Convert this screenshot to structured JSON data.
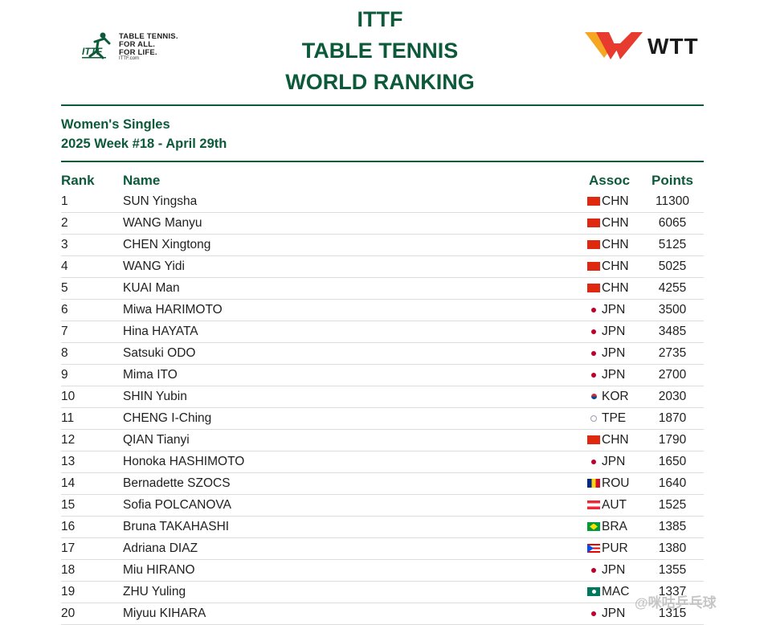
{
  "header": {
    "logo_tagline": [
      "TABLE TENNIS.",
      "FOR ALL.",
      "FOR LIFE."
    ],
    "logo_url": "ITTF.com",
    "title_lines": [
      "ITTF",
      "TABLE TENNIS",
      "WORLD RANKING"
    ],
    "wtt_label": "WTT"
  },
  "subtitle": {
    "category": "Women's Singles",
    "week": "2025 Week #18 - April 29th"
  },
  "table": {
    "columns": {
      "rank": "Rank",
      "name": "Name",
      "assoc": "Assoc",
      "points": "Points"
    },
    "rows": [
      {
        "rank": "1",
        "name": "SUN Yingsha",
        "flag": "chn",
        "assoc": "CHN",
        "points": "11300"
      },
      {
        "rank": "2",
        "name": "WANG Manyu",
        "flag": "chn",
        "assoc": "CHN",
        "points": "6065"
      },
      {
        "rank": "3",
        "name": "CHEN Xingtong",
        "flag": "chn",
        "assoc": "CHN",
        "points": "5125"
      },
      {
        "rank": "4",
        "name": "WANG Yidi",
        "flag": "chn",
        "assoc": "CHN",
        "points": "5025"
      },
      {
        "rank": "5",
        "name": "KUAI Man",
        "flag": "chn",
        "assoc": "CHN",
        "points": "4255"
      },
      {
        "rank": "6",
        "name": "Miwa HARIMOTO",
        "flag": "jpn",
        "assoc": "JPN",
        "points": "3500"
      },
      {
        "rank": "7",
        "name": "Hina HAYATA",
        "flag": "jpn",
        "assoc": "JPN",
        "points": "3485"
      },
      {
        "rank": "8",
        "name": "Satsuki ODO",
        "flag": "jpn",
        "assoc": "JPN",
        "points": "2735"
      },
      {
        "rank": "9",
        "name": "Mima ITO",
        "flag": "jpn",
        "assoc": "JPN",
        "points": "2700"
      },
      {
        "rank": "10",
        "name": "SHIN Yubin",
        "flag": "kor",
        "assoc": "KOR",
        "points": "2030"
      },
      {
        "rank": "11",
        "name": "CHENG I-Ching",
        "flag": "tpe",
        "assoc": "TPE",
        "points": "1870"
      },
      {
        "rank": "12",
        "name": "QIAN Tianyi",
        "flag": "chn",
        "assoc": "CHN",
        "points": "1790"
      },
      {
        "rank": "13",
        "name": "Honoka HASHIMOTO",
        "flag": "jpn",
        "assoc": "JPN",
        "points": "1650"
      },
      {
        "rank": "14",
        "name": "Bernadette SZOCS",
        "flag": "rou",
        "assoc": "ROU",
        "points": "1640"
      },
      {
        "rank": "15",
        "name": "Sofia POLCANOVA",
        "flag": "aut",
        "assoc": "AUT",
        "points": "1525"
      },
      {
        "rank": "16",
        "name": "Bruna TAKAHASHI",
        "flag": "bra",
        "assoc": "BRA",
        "points": "1385"
      },
      {
        "rank": "17",
        "name": "Adriana DIAZ",
        "flag": "pur",
        "assoc": "PUR",
        "points": "1380"
      },
      {
        "rank": "18",
        "name": "Miu HIRANO",
        "flag": "jpn",
        "assoc": "JPN",
        "points": "1355"
      },
      {
        "rank": "19",
        "name": "ZHU Yuling",
        "flag": "mac",
        "assoc": "MAC",
        "points": "1337"
      },
      {
        "rank": "20",
        "name": "Miyuu KIHARA",
        "flag": "jpn",
        "assoc": "JPN",
        "points": "1315"
      }
    ]
  },
  "watermark": "@咪咕乒乓球",
  "colors": {
    "brand_green": "#0d5a3a",
    "wtt_red": "#e63b2e",
    "wtt_orange": "#f5a623"
  }
}
